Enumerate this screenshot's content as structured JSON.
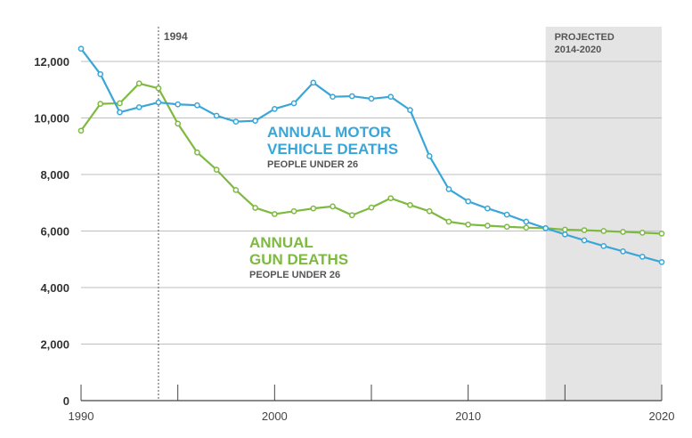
{
  "chart_data": {
    "type": "line",
    "title": "",
    "xlabel": "",
    "ylabel": "",
    "xlim": [
      1990,
      2020
    ],
    "ylim": [
      0,
      12000
    ],
    "y_ticks": [
      0,
      2000,
      4000,
      6000,
      8000,
      10000,
      12000
    ],
    "y_tick_labels": [
      "0",
      "2,000",
      "4,000",
      "6,000",
      "8,000",
      "10,000",
      "12,000"
    ],
    "x_ticks": [
      1990,
      2000,
      2010,
      2020
    ],
    "x_tick_labels": [
      "1990",
      "2000",
      "2010",
      "2020"
    ],
    "x": [
      1990,
      1991,
      1992,
      1993,
      1994,
      1995,
      1996,
      1997,
      1998,
      1999,
      2000,
      2001,
      2002,
      2003,
      2004,
      2005,
      2006,
      2007,
      2008,
      2009,
      2010,
      2011,
      2012,
      2013,
      2014,
      2015,
      2016,
      2017,
      2018,
      2019,
      2020
    ],
    "series": [
      {
        "name": "Annual Motor Vehicle Deaths",
        "color": "#3aa6d8",
        "label_line1": "ANNUAL MOTOR",
        "label_line2": "VEHICLE DEATHS",
        "sublabel": "PEOPLE UNDER 26",
        "values": [
          12450,
          11550,
          10200,
          10380,
          10550,
          10480,
          10450,
          10080,
          9870,
          9900,
          10320,
          10520,
          11250,
          10750,
          10770,
          10680,
          10750,
          10280,
          8650,
          7480,
          7050,
          6800,
          6580,
          6330,
          6100,
          5880,
          5670,
          5470,
          5280,
          5090,
          4900
        ]
      },
      {
        "name": "Annual Gun Deaths",
        "color": "#7dba3f",
        "label_line1": "ANNUAL",
        "label_line2": "GUN DEATHS",
        "sublabel": "PEOPLE UNDER 26",
        "values": [
          9550,
          10500,
          10520,
          11220,
          11050,
          9800,
          8780,
          8170,
          7450,
          6820,
          6600,
          6700,
          6800,
          6870,
          6560,
          6830,
          7160,
          6920,
          6700,
          6330,
          6230,
          6190,
          6150,
          6120,
          6100,
          6050,
          6030,
          6000,
          5970,
          5940,
          5910
        ]
      }
    ],
    "annotations": {
      "marker_year": 1994,
      "marker_label": "1994",
      "projected_range": [
        2014,
        2020
      ],
      "projected_line1": "PROJECTED",
      "projected_line2": "2014-2020"
    },
    "grid": true
  },
  "colors": {
    "motor": "#3aa6d8",
    "gun": "#7dba3f",
    "shade": "#e4e4e5",
    "grid": "#bfbfbf",
    "axis": "#444444"
  }
}
